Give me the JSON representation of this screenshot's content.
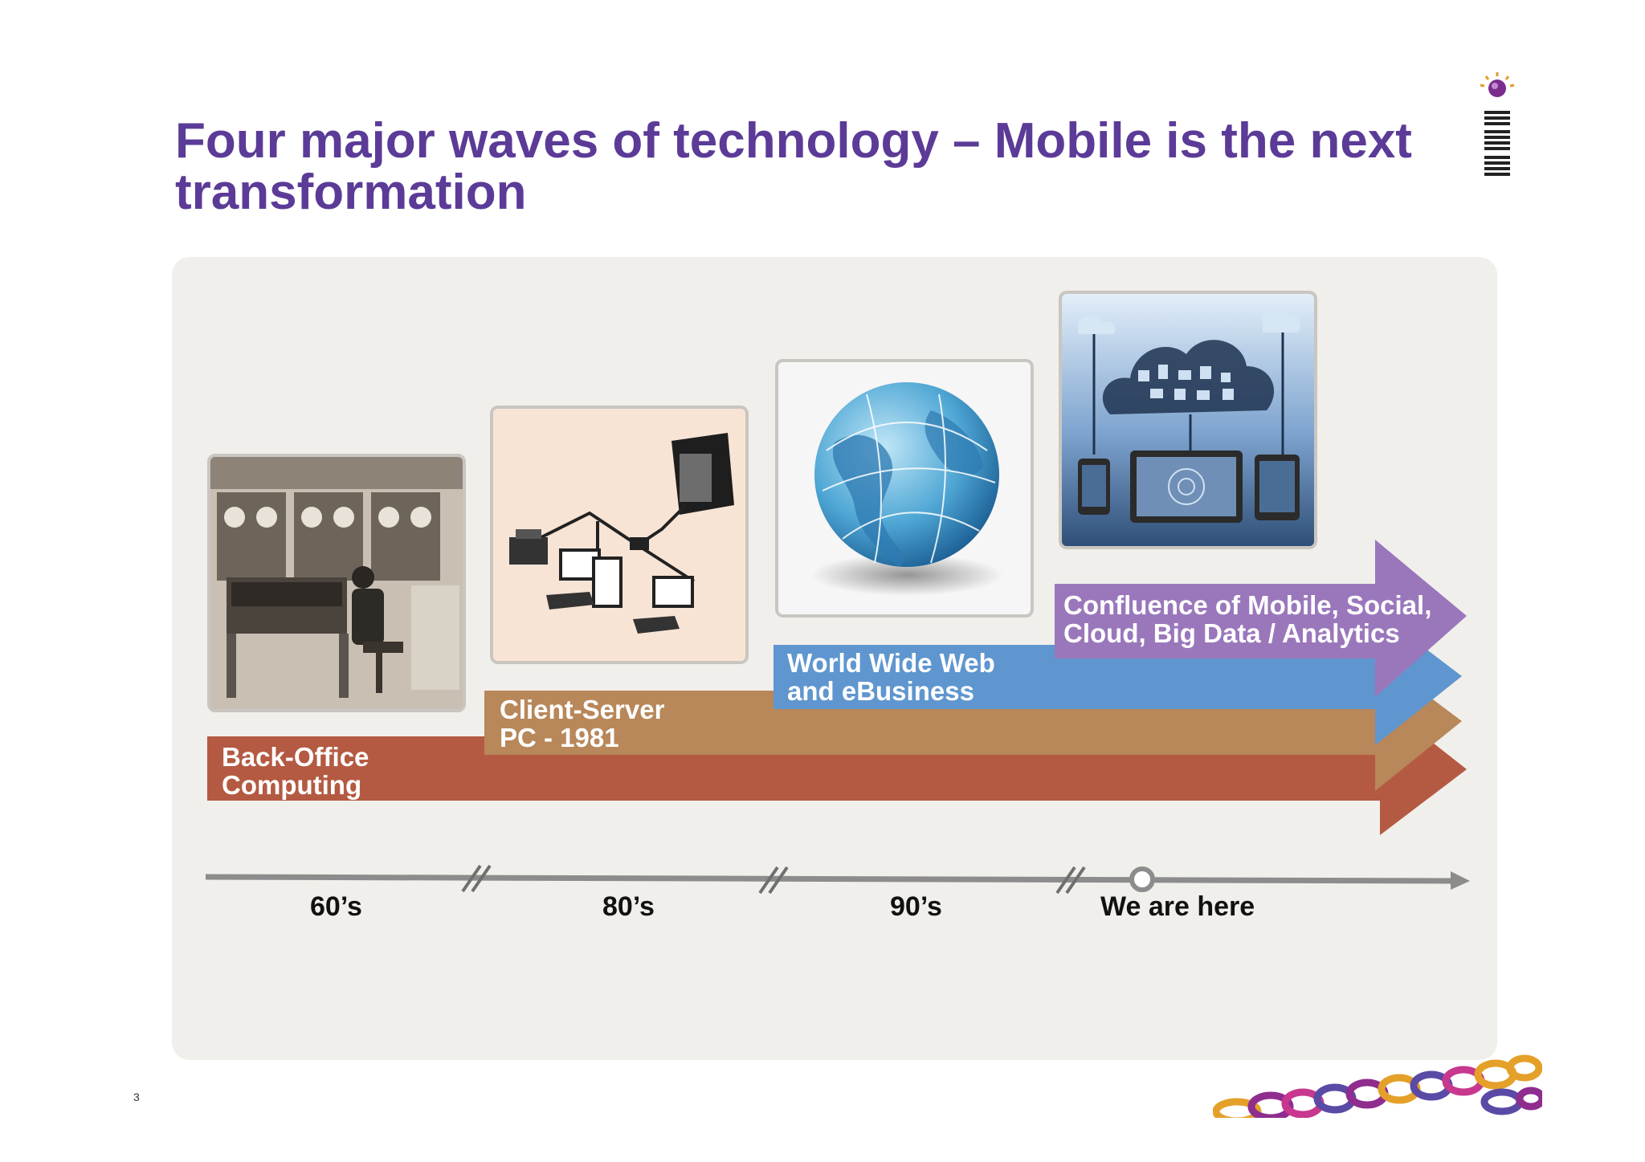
{
  "title": {
    "line1": "Four major waves of technology – Mobile is the next",
    "line2": "transformation"
  },
  "logo": {
    "icon": "ibm-logo-icon",
    "text": "IBM"
  },
  "waves": [
    {
      "line1": "Back-Office",
      "line2": "Computing",
      "color": "#b45a42",
      "image": "mainframe-operator-photo"
    },
    {
      "line1": "Client-Server",
      "line2": "PC - 1981",
      "color": "#b8875a",
      "image": "client-server-network-illustration"
    },
    {
      "line1": "World Wide Web",
      "line2": "and eBusiness",
      "color": "#5f96cf",
      "image": "globe-network-image"
    },
    {
      "line1": "Confluence of Mobile, Social,",
      "line2": "Cloud, Big Data / Analytics",
      "color": "#9a77bb",
      "image": "mobile-cloud-devices-image"
    }
  ],
  "timeline": {
    "ticks": [
      "60’s",
      "80’s",
      "90’s",
      "We are here"
    ],
    "axis_color": "#8c8c8c"
  },
  "page_number": "3"
}
